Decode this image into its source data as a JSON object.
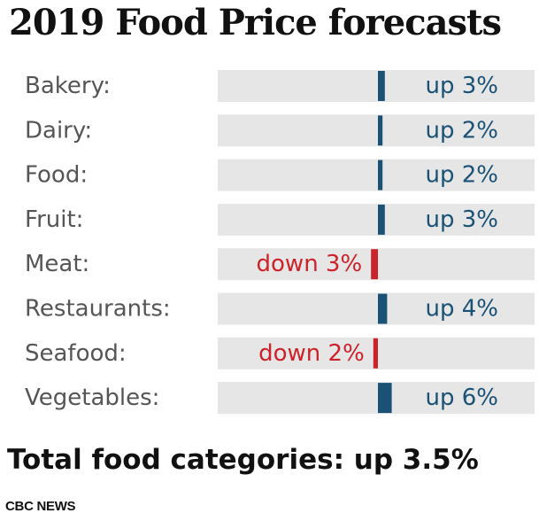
{
  "title": "2019 Food Price forecasts",
  "total_text": "Total food categories: up 3.5%",
  "source": "CBC NEWS",
  "colors": {
    "up": "#1a5276",
    "down": "#cc2229",
    "track": "#e6e6e6",
    "category": "#555555"
  },
  "chart_data": {
    "type": "bar",
    "orientation": "horizontal",
    "title": "2019 Food Price forecasts",
    "categories": [
      "Bakery:",
      "Dairy:",
      "Food:",
      "Fruit:",
      "Meat:",
      "Restaurants:",
      "Seafood:",
      "Vegetables:"
    ],
    "values": [
      3,
      2,
      2,
      3,
      -3,
      4,
      -2,
      6
    ],
    "value_labels": [
      "up 3%",
      "up 2%",
      "up 2%",
      "up 3%",
      "down 3%",
      "up 4%",
      "down 2%",
      "up 6%"
    ],
    "unit": "%",
    "xlim": [
      -12,
      12
    ],
    "grid": false,
    "legend": "none"
  }
}
